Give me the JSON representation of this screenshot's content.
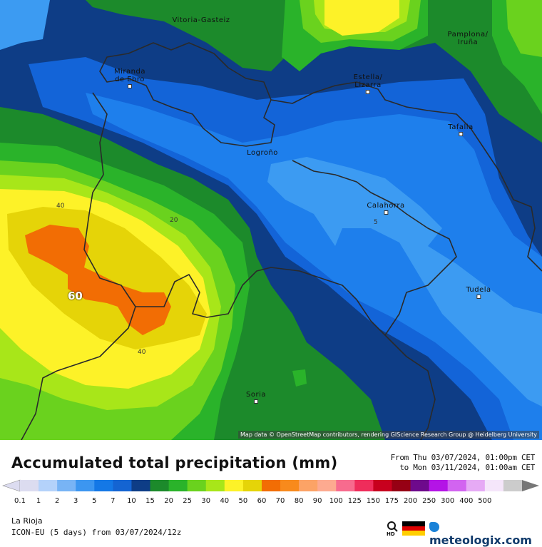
{
  "map": {
    "attribution": "Map data © OpenStreetMap contributors, rendering GIScience Research Group @ Heidelberg University",
    "cities": [
      {
        "key": "vitoria",
        "name": "Vitoria-Gasteiz",
        "dot": false
      },
      {
        "key": "pamplona",
        "name": "Pamplona/\nIruña",
        "dot": false
      },
      {
        "key": "miranda",
        "name": "Miranda\nde Ebro",
        "dot": true
      },
      {
        "key": "estella",
        "name": "Estella/\nLizarra",
        "dot": true
      },
      {
        "key": "tafalla",
        "name": "Tafalla",
        "dot": true
      },
      {
        "key": "logrono",
        "name": "Logroño",
        "dot": false
      },
      {
        "key": "calahorra",
        "name": "Calahorra",
        "dot": true
      },
      {
        "key": "tudela",
        "name": "Tudela",
        "dot": true
      },
      {
        "key": "soria",
        "name": "Soria",
        "dot": true
      }
    ],
    "contour_labels": [
      "40",
      "20",
      "5",
      "60",
      "40"
    ],
    "colors": {
      "darkblue": "#0e3d86",
      "blue": "#1364d8",
      "midblue": "#1e7fec",
      "lightblue": "#3c9bf2",
      "darkgreen": "#1c8a2b",
      "green": "#2ab32a",
      "lightgreen": "#6ad21e",
      "lime": "#a8e619",
      "yellow": "#fdf228",
      "gold": "#e5d408",
      "orange": "#f26d04"
    }
  },
  "legend": {
    "title": "Accumulated total precipitation (mm)",
    "from": "From Thu 03/07/2024, 01:00pm CET",
    "to": "to Mon 03/11/2024, 01:00am CET",
    "ticks": [
      "0.1",
      "1",
      "2",
      "3",
      "5",
      "7",
      "10",
      "15",
      "20",
      "25",
      "30",
      "40",
      "50",
      "60",
      "70",
      "80",
      "90",
      "100",
      "125",
      "150",
      "175",
      "200",
      "250",
      "300",
      "400",
      "500"
    ],
    "colors": [
      "#dcdcf0",
      "#b4d2fa",
      "#78b4f5",
      "#3c96f0",
      "#1478e6",
      "#1464d2",
      "#0e3d86",
      "#1c8a2b",
      "#2ab32a",
      "#6ad21e",
      "#a8e619",
      "#fdf228",
      "#e5d408",
      "#f26d04",
      "#f88a1c",
      "#fca366",
      "#fdaa90",
      "#f76b8e",
      "#ef2d5b",
      "#c8001e",
      "#960014",
      "#6e0a8c",
      "#b414e6",
      "#d264f0",
      "#e6aaf5",
      "#f5e6fa",
      "#cccccc"
    ]
  },
  "footer": {
    "region": "La Rioja",
    "model": "ICON-EU (5 days) from 03/07/2024/12z",
    "brand": "meteologix.com",
    "hd_label": "HD",
    "flag_colors": [
      "#000000",
      "#dd0000",
      "#ffce00"
    ]
  }
}
